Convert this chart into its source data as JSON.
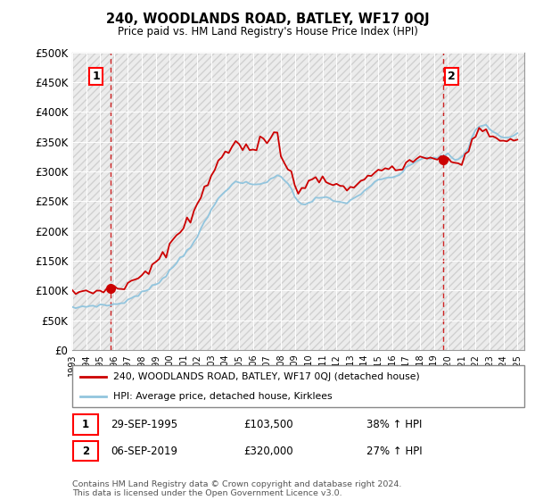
{
  "title": "240, WOODLANDS ROAD, BATLEY, WF17 0QJ",
  "subtitle": "Price paid vs. HM Land Registry's House Price Index (HPI)",
  "ylim": [
    0,
    500000
  ],
  "yticks": [
    0,
    50000,
    100000,
    150000,
    200000,
    250000,
    300000,
    350000,
    400000,
    450000,
    500000
  ],
  "ytick_labels": [
    "£0",
    "£50K",
    "£100K",
    "£150K",
    "£200K",
    "£250K",
    "£300K",
    "£350K",
    "£400K",
    "£450K",
    "£500K"
  ],
  "sale1_date": 1995.75,
  "sale1_price": 103500,
  "sale2_date": 2019.68,
  "sale2_price": 320000,
  "hpi_color": "#92c5de",
  "price_color": "#cc0000",
  "vline_color": "#cc0000",
  "legend_line1": "240, WOODLANDS ROAD, BATLEY, WF17 0QJ (detached house)",
  "legend_line2": "HPI: Average price, detached house, Kirklees",
  "ann1_date": "29-SEP-1995",
  "ann1_price": "£103,500",
  "ann1_hpi": "38% ↑ HPI",
  "ann2_date": "06-SEP-2019",
  "ann2_price": "£320,000",
  "ann2_hpi": "27% ↑ HPI",
  "footer": "Contains HM Land Registry data © Crown copyright and database right 2024.\nThis data is licensed under the Open Government Licence v3.0.",
  "xlim_start": 1993.0,
  "xlim_end": 2025.5,
  "hpi_years": [
    1993.0,
    1993.25,
    1993.5,
    1993.75,
    1994.0,
    1994.25,
    1994.5,
    1994.75,
    1995.0,
    1995.25,
    1995.5,
    1995.75,
    1996.0,
    1996.25,
    1996.5,
    1996.75,
    1997.0,
    1997.25,
    1997.5,
    1997.75,
    1998.0,
    1998.25,
    1998.5,
    1998.75,
    1999.0,
    1999.25,
    1999.5,
    1999.75,
    2000.0,
    2000.25,
    2000.5,
    2000.75,
    2001.0,
    2001.25,
    2001.5,
    2001.75,
    2002.0,
    2002.25,
    2002.5,
    2002.75,
    2003.0,
    2003.25,
    2003.5,
    2003.75,
    2004.0,
    2004.25,
    2004.5,
    2004.75,
    2005.0,
    2005.25,
    2005.5,
    2005.75,
    2006.0,
    2006.25,
    2006.5,
    2006.75,
    2007.0,
    2007.25,
    2007.5,
    2007.75,
    2008.0,
    2008.25,
    2008.5,
    2008.75,
    2009.0,
    2009.25,
    2009.5,
    2009.75,
    2010.0,
    2010.25,
    2010.5,
    2010.75,
    2011.0,
    2011.25,
    2011.5,
    2011.75,
    2012.0,
    2012.25,
    2012.5,
    2012.75,
    2013.0,
    2013.25,
    2013.5,
    2013.75,
    2014.0,
    2014.25,
    2014.5,
    2014.75,
    2015.0,
    2015.25,
    2015.5,
    2015.75,
    2016.0,
    2016.25,
    2016.5,
    2016.75,
    2017.0,
    2017.25,
    2017.5,
    2017.75,
    2018.0,
    2018.25,
    2018.5,
    2018.75,
    2019.0,
    2019.25,
    2019.5,
    2019.75,
    2020.0,
    2020.25,
    2020.5,
    2020.75,
    2021.0,
    2021.25,
    2021.5,
    2021.75,
    2022.0,
    2022.25,
    2022.5,
    2022.75,
    2023.0,
    2023.25,
    2023.5,
    2023.75,
    2024.0,
    2024.25,
    2024.5,
    2024.75,
    2025.0
  ],
  "hpi_values": [
    70000,
    71000,
    72000,
    73000,
    73500,
    74000,
    74500,
    75000,
    75000,
    75200,
    75400,
    75600,
    76500,
    77500,
    79000,
    81000,
    84000,
    87000,
    90000,
    93000,
    96000,
    99000,
    102000,
    106000,
    110000,
    115000,
    121000,
    127000,
    133000,
    140000,
    147000,
    154000,
    160000,
    167000,
    175000,
    183000,
    192000,
    202000,
    213000,
    224000,
    235000,
    245000,
    254000,
    262000,
    269000,
    274000,
    278000,
    280000,
    281000,
    281000,
    280000,
    279000,
    278000,
    278000,
    279000,
    281000,
    284000,
    287000,
    290000,
    292000,
    292000,
    288000,
    280000,
    269000,
    258000,
    251000,
    247000,
    246000,
    248000,
    251000,
    254000,
    256000,
    256000,
    255000,
    253000,
    251000,
    249000,
    248000,
    248000,
    249000,
    251000,
    254000,
    258000,
    263000,
    268000,
    273000,
    277000,
    281000,
    284000,
    286000,
    288000,
    289000,
    290000,
    292000,
    295000,
    299000,
    304000,
    309000,
    314000,
    318000,
    321000,
    322000,
    323000,
    323000,
    323000,
    323000,
    324000,
    326000,
    328000,
    325000,
    320000,
    320000,
    323000,
    330000,
    342000,
    358000,
    370000,
    376000,
    378000,
    376000,
    372000,
    368000,
    363000,
    359000,
    357000,
    356000,
    357000,
    360000,
    363000
  ]
}
